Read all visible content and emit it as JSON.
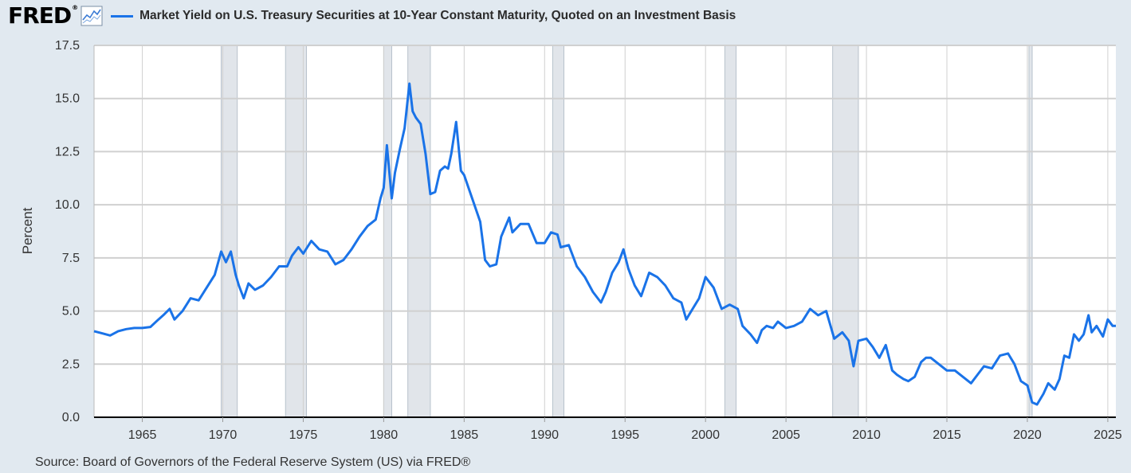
{
  "header": {
    "logo": "FRED",
    "logo_mark": "®",
    "title": "Market Yield on U.S. Treasury Securities at 10-Year Constant Maturity, Quoted on an Investment Basis",
    "icon": "line-graph-icon"
  },
  "colors": {
    "series": "#1a73e8",
    "background": "#e1e9f0",
    "plot_bg": "#ffffff",
    "recession": "#e1e5ea",
    "grid": "#d0d0d0"
  },
  "footer": {
    "source": "Source: Board of Governors of the Federal Reserve System (US) via FRED®"
  },
  "chart_data": {
    "type": "line",
    "title": "Market Yield on U.S. Treasury Securities at 10-Year Constant Maturity, Quoted on an Investment Basis",
    "xlabel": "",
    "ylabel": "Percent",
    "xlim": [
      1962.0,
      2025.5
    ],
    "ylim": [
      0,
      17.5
    ],
    "grid": true,
    "legend": "top-left",
    "x_ticks": [
      1965,
      1970,
      1975,
      1980,
      1985,
      1990,
      1995,
      2000,
      2005,
      2010,
      2015,
      2020,
      2025
    ],
    "x_tick_labels": [
      "1965",
      "1970",
      "1975",
      "1980",
      "1985",
      "1990",
      "1995",
      "2000",
      "2005",
      "2010",
      "2015",
      "2020",
      "2025"
    ],
    "y_ticks": [
      0,
      2.5,
      5,
      7.5,
      10,
      12.5,
      15,
      17.5
    ],
    "y_tick_labels": [
      "0.0",
      "2.5",
      "5.0",
      "7.5",
      "10.0",
      "12.5",
      "15.0",
      "17.5"
    ],
    "recessions": [
      [
        1969.9,
        1970.9
      ],
      [
        1973.9,
        1975.2
      ],
      [
        1980.0,
        1980.5
      ],
      [
        1981.5,
        1982.9
      ],
      [
        1990.5,
        1991.2
      ],
      [
        2001.2,
        2001.9
      ],
      [
        2007.9,
        2009.5
      ],
      [
        2020.1,
        2020.3
      ]
    ],
    "series": [
      {
        "name": "Market Yield on U.S. Treasury Securities at 10-Year Constant Maturity, Quoted on an Investment Basis",
        "x": [
          1962.0,
          1962.5,
          1963.0,
          1963.5,
          1964.0,
          1964.5,
          1965.0,
          1965.5,
          1966.0,
          1966.3,
          1966.7,
          1967.0,
          1967.5,
          1968.0,
          1968.5,
          1969.0,
          1969.5,
          1969.9,
          1970.2,
          1970.5,
          1970.8,
          1971.0,
          1971.3,
          1971.6,
          1972.0,
          1972.5,
          1973.0,
          1973.5,
          1974.0,
          1974.3,
          1974.7,
          1975.0,
          1975.5,
          1976.0,
          1976.5,
          1977.0,
          1977.5,
          1978.0,
          1978.5,
          1979.0,
          1979.5,
          1979.8,
          1980.0,
          1980.2,
          1980.5,
          1980.7,
          1981.0,
          1981.3,
          1981.6,
          1981.8,
          1982.0,
          1982.3,
          1982.6,
          1982.9,
          1983.2,
          1983.5,
          1983.8,
          1984.0,
          1984.2,
          1984.5,
          1984.8,
          1985.0,
          1985.5,
          1986.0,
          1986.3,
          1986.6,
          1987.0,
          1987.3,
          1987.8,
          1988.0,
          1988.5,
          1989.0,
          1989.5,
          1990.0,
          1990.4,
          1990.8,
          1991.0,
          1991.5,
          1992.0,
          1992.5,
          1993.0,
          1993.5,
          1993.8,
          1994.2,
          1994.6,
          1994.9,
          1995.2,
          1995.6,
          1996.0,
          1996.5,
          1997.0,
          1997.5,
          1998.0,
          1998.5,
          1998.8,
          1999.2,
          1999.6,
          2000.0,
          2000.5,
          2001.0,
          2001.5,
          2002.0,
          2002.3,
          2002.8,
          2003.2,
          2003.5,
          2003.8,
          2004.2,
          2004.5,
          2005.0,
          2005.5,
          2006.0,
          2006.5,
          2007.0,
          2007.5,
          2008.0,
          2008.5,
          2008.9,
          2009.2,
          2009.5,
          2010.0,
          2010.4,
          2010.8,
          2011.2,
          2011.6,
          2011.9,
          2012.3,
          2012.6,
          2013.0,
          2013.4,
          2013.7,
          2014.0,
          2014.5,
          2015.0,
          2015.5,
          2016.0,
          2016.5,
          2016.9,
          2017.3,
          2017.8,
          2018.3,
          2018.8,
          2019.2,
          2019.6,
          2020.0,
          2020.3,
          2020.6,
          2021.0,
          2021.3,
          2021.7,
          2022.0,
          2022.3,
          2022.6,
          2022.9,
          2023.2,
          2023.5,
          2023.8,
          2024.0,
          2024.3,
          2024.7,
          2025.0,
          2025.3,
          2025.5
        ],
        "values": [
          4.05,
          3.95,
          3.85,
          4.05,
          4.15,
          4.2,
          4.2,
          4.25,
          4.6,
          4.8,
          5.1,
          4.6,
          5.0,
          5.6,
          5.5,
          6.1,
          6.7,
          7.8,
          7.3,
          7.8,
          6.7,
          6.2,
          5.6,
          6.3,
          6.0,
          6.2,
          6.6,
          7.1,
          7.1,
          7.6,
          8.0,
          7.7,
          8.3,
          7.9,
          7.8,
          7.2,
          7.4,
          7.9,
          8.5,
          9.0,
          9.3,
          10.3,
          10.8,
          12.8,
          10.3,
          11.5,
          12.6,
          13.6,
          15.7,
          14.4,
          14.1,
          13.8,
          12.4,
          10.5,
          10.6,
          11.6,
          11.8,
          11.7,
          12.4,
          13.9,
          11.6,
          11.4,
          10.3,
          9.2,
          7.4,
          7.1,
          7.2,
          8.5,
          9.4,
          8.7,
          9.1,
          9.1,
          8.2,
          8.2,
          8.7,
          8.6,
          8.0,
          8.1,
          7.1,
          6.6,
          5.9,
          5.4,
          5.9,
          6.8,
          7.3,
          7.9,
          7.0,
          6.2,
          5.7,
          6.8,
          6.6,
          6.2,
          5.6,
          5.4,
          4.6,
          5.1,
          5.6,
          6.6,
          6.1,
          5.1,
          5.3,
          5.1,
          4.3,
          3.9,
          3.5,
          4.1,
          4.3,
          4.2,
          4.5,
          4.2,
          4.3,
          4.5,
          5.1,
          4.8,
          5.0,
          3.7,
          4.0,
          3.6,
          2.4,
          3.6,
          3.7,
          3.3,
          2.8,
          3.4,
          2.2,
          2.0,
          1.8,
          1.7,
          1.9,
          2.6,
          2.8,
          2.8,
          2.5,
          2.2,
          2.2,
          1.9,
          1.6,
          2.0,
          2.4,
          2.3,
          2.9,
          3.0,
          2.5,
          1.7,
          1.5,
          0.7,
          0.6,
          1.1,
          1.6,
          1.3,
          1.8,
          2.9,
          2.8,
          3.9,
          3.6,
          3.9,
          4.8,
          4.0,
          4.3,
          3.8,
          4.6,
          4.3,
          4.3
        ]
      }
    ],
    "source": "Source: Board of Governors of the Federal Reserve System (US) via FRED®"
  }
}
